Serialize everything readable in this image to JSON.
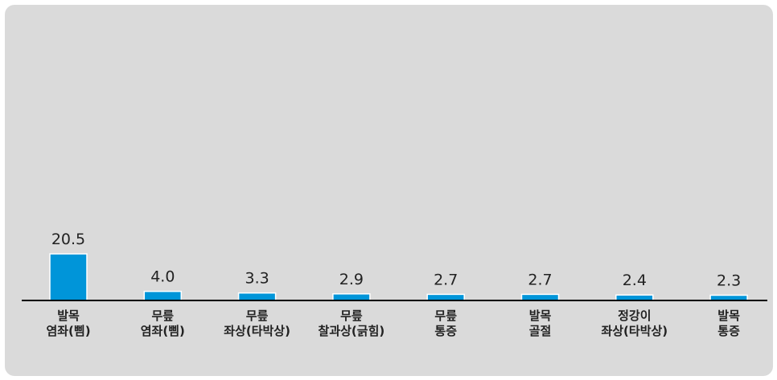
{
  "chart_data": {
    "type": "bar",
    "categories": [
      [
        "발목",
        "염좌(삠)"
      ],
      [
        "무릎",
        "염좌(삠)"
      ],
      [
        "무릎",
        "좌상(타박상)"
      ],
      [
        "무릎",
        "찰과상(긁힘)"
      ],
      [
        "무릎",
        "통증"
      ],
      [
        "발목",
        "골절"
      ],
      [
        "정강이",
        "좌상(타박상)"
      ],
      [
        "발목",
        "통증"
      ]
    ],
    "values": [
      20.5,
      4.0,
      3.3,
      2.9,
      2.7,
      2.7,
      2.4,
      2.3
    ],
    "value_labels": [
      "20.5",
      "4.0",
      "3.3",
      "2.9",
      "2.7",
      "2.7",
      "2.4",
      "2.3"
    ],
    "ylim": [
      0,
      100
    ],
    "bar_color": "#0095d9",
    "axis_color": "#000000",
    "background_color": "#dadada",
    "grid": false,
    "legend": "none",
    "title": "",
    "xlabel": "",
    "ylabel": ""
  }
}
